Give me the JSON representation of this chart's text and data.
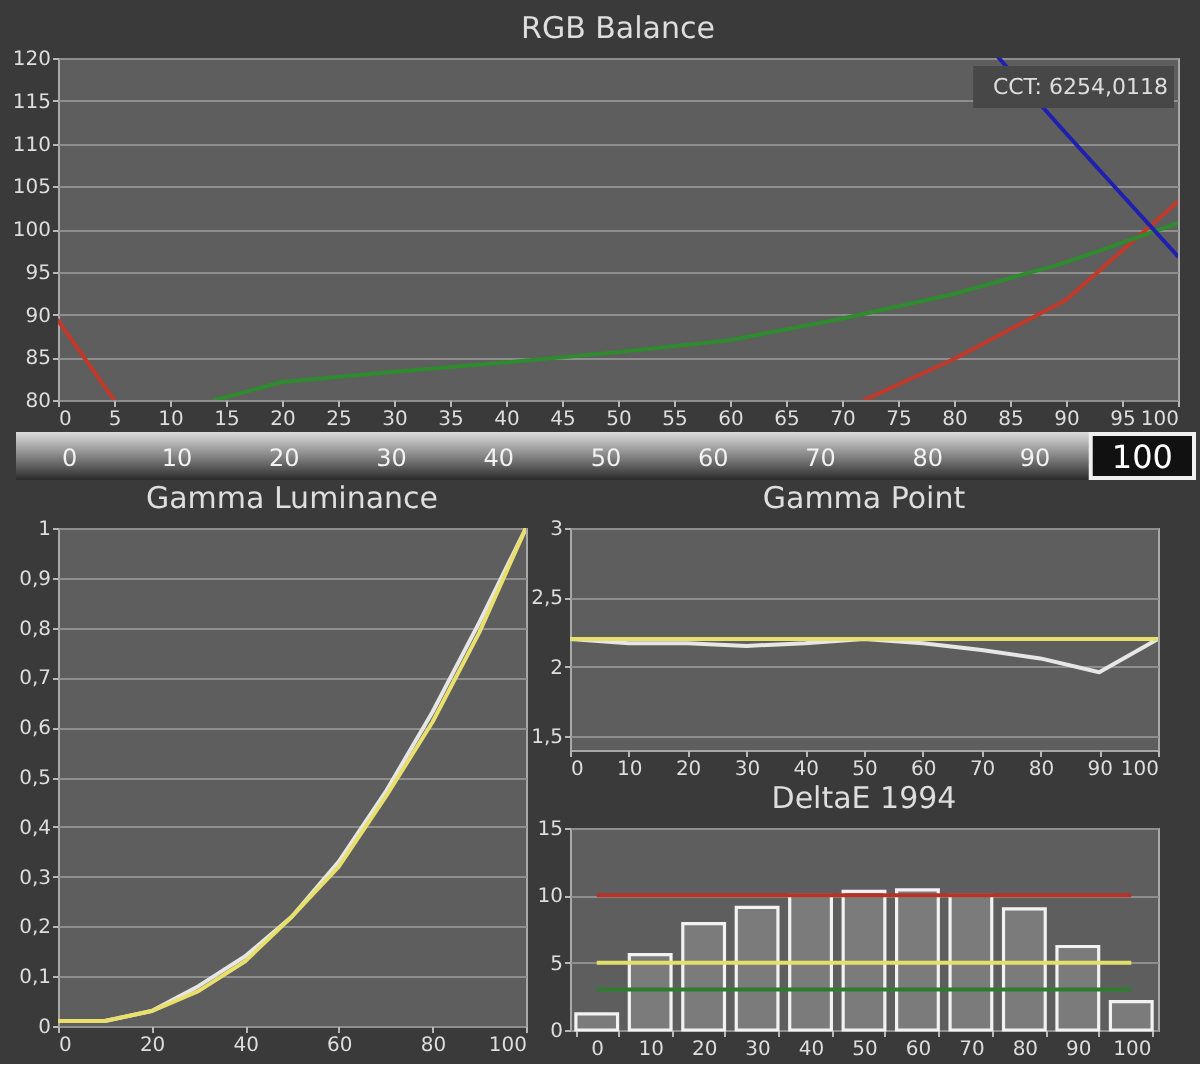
{
  "chart_data": [
    {
      "type": "line",
      "title": "RGB Balance",
      "xlim": [
        0,
        100
      ],
      "xticks": [
        0,
        5,
        10,
        15,
        20,
        25,
        30,
        35,
        40,
        45,
        50,
        55,
        60,
        65,
        70,
        75,
        80,
        85,
        90,
        95,
        100
      ],
      "ylim": [
        80,
        120
      ],
      "yticks": [
        80,
        85,
        90,
        95,
        100,
        105,
        110,
        115,
        120
      ],
      "grid": "y",
      "annotations": [
        "CCT: 6254,0118",
        "0",
        "10",
        "20",
        "30",
        "40",
        "50",
        "60",
        "70",
        "80",
        "90",
        "100"
      ],
      "series": [
        {
          "color": "#c0392b",
          "x": [
            0,
            5,
            10,
            20,
            30,
            40,
            50,
            60,
            70,
            72,
            80,
            90,
            100
          ],
          "values": [
            89.3,
            80,
            null,
            null,
            null,
            null,
            null,
            null,
            null,
            80,
            84.8,
            91.7,
            103.2
          ]
        },
        {
          "color": "#2e8b2e",
          "x": [
            14,
            20,
            30,
            40,
            50,
            60,
            70,
            80,
            90,
            100
          ],
          "values": [
            80,
            82.1,
            83.3,
            84.4,
            85.6,
            87.0,
            89.5,
            92.4,
            96.1,
            100.7
          ]
        },
        {
          "color": "#2020b0",
          "x": [
            84,
            90,
            100
          ],
          "values": [
            120,
            111.2,
            96.8
          ]
        }
      ]
    },
    {
      "type": "line",
      "title": "Gamma Luminance",
      "x": [
        0,
        10,
        20,
        30,
        40,
        50,
        60,
        70,
        80,
        90,
        100
      ],
      "xlim": [
        0,
        100
      ],
      "xticks": [
        0,
        20,
        40,
        60,
        80,
        100
      ],
      "ylim": [
        0,
        1
      ],
      "yticks": [
        0,
        {
          "value": 0.1,
          "label": "0,1"
        },
        {
          "value": 0.2,
          "label": "0,2"
        },
        {
          "value": 0.3,
          "label": "0,3"
        },
        {
          "value": 0.4,
          "label": "0,4"
        },
        {
          "value": 0.5,
          "label": "0,5"
        },
        {
          "value": 0.6,
          "label": "0,6"
        },
        {
          "value": 0.7,
          "label": "0,7"
        },
        {
          "value": 0.8,
          "label": "0,8"
        },
        {
          "value": 0.9,
          "label": "0,9"
        },
        1
      ],
      "grid": "y",
      "series": [
        {
          "color": "#e6e6e6",
          "values": [
            0.01,
            0.01,
            0.03,
            0.08,
            0.14,
            0.22,
            0.33,
            0.47,
            0.63,
            0.81,
            1
          ]
        },
        {
          "color": "#e8e06a",
          "values": [
            0.01,
            0.01,
            0.03,
            0.07,
            0.13,
            0.22,
            0.32,
            0.46,
            0.61,
            0.79,
            1
          ]
        }
      ]
    },
    {
      "type": "line",
      "title": "Gamma Point",
      "x": [
        0,
        10,
        20,
        30,
        40,
        50,
        60,
        70,
        80,
        90,
        100
      ],
      "xlim": [
        0,
        100
      ],
      "xticks": [
        0,
        10,
        20,
        30,
        40,
        50,
        60,
        70,
        80,
        90,
        100
      ],
      "ylim": [
        1.4,
        3
      ],
      "yticks": [
        {
          "value": 1.5,
          "label": "1,5"
        },
        2,
        {
          "value": 2.5,
          "label": "2,5"
        },
        3
      ],
      "grid": "y",
      "series": [
        {
          "color": "#e6e6e6",
          "values": [
            2.2,
            2.17,
            2.17,
            2.15,
            2.17,
            2.2,
            2.17,
            2.12,
            2.06,
            1.96,
            2.2
          ]
        },
        {
          "color": "#e8e06a",
          "values": [
            2.2,
            2.2,
            2.2,
            2.2,
            2.2,
            2.2,
            2.2,
            2.2,
            2.2,
            2.2,
            2.2
          ]
        }
      ]
    },
    {
      "type": "bar",
      "title": "DeltaE 1994",
      "categories": [
        "0",
        "10",
        "20",
        "30",
        "40",
        "50",
        "60",
        "70",
        "80",
        "90",
        "100"
      ],
      "values": [
        1.2,
        5.6,
        7.9,
        9.1,
        10.0,
        10.3,
        10.4,
        10.0,
        9.0,
        6.2,
        2.1
      ],
      "color": "#7e7e7e",
      "ylim": [
        0,
        15
      ],
      "yticks": [
        0,
        5,
        10,
        15
      ],
      "grid": "y",
      "ref_lines": [
        {
          "axis": "y",
          "value": 10,
          "color": "#b83228"
        },
        {
          "axis": "y",
          "value": 5,
          "color": "#e2e06a"
        },
        {
          "axis": "y",
          "value": 3,
          "color": "#2e7d2e"
        }
      ]
    }
  ]
}
